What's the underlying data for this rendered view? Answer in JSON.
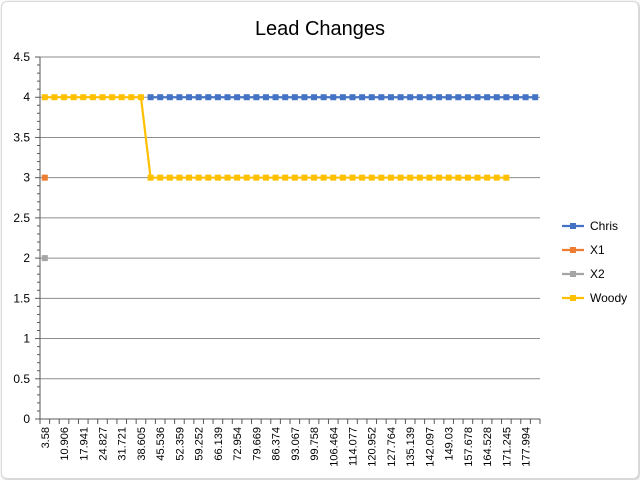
{
  "chart_data": {
    "type": "line",
    "title": "Lead Changes",
    "xlabel": "",
    "ylabel": "",
    "ylim": [
      0,
      4.5
    ],
    "yticks": [
      "0",
      "0.5",
      "1",
      "1.5",
      "2",
      "2.5",
      "3",
      "3.5",
      "4",
      "4.5"
    ],
    "x_tick_labels": [
      "3.58",
      "10.906",
      "17.941",
      "24.827",
      "31.721",
      "38.605",
      "45.536",
      "52.359",
      "59.252",
      "66.139",
      "72.954",
      "79.669",
      "86.374",
      "93.067",
      "99.758",
      "106.464",
      "114.077",
      "120.952",
      "127.764",
      "135.139",
      "142.097",
      "149.03",
      "157.678",
      "164.528",
      "171.245",
      "177.994"
    ],
    "legend_position": "right",
    "grid": true,
    "series": [
      {
        "name": "Chris",
        "color": "#4472c4",
        "marker": "square",
        "start_index": 11,
        "end_index": 51,
        "value": 4
      },
      {
        "name": "X1",
        "color": "#ed7d31",
        "marker": "square",
        "start_index": 0,
        "end_index": 0,
        "value": 3
      },
      {
        "name": "X2",
        "color": "#a5a5a5",
        "marker": "square",
        "start_index": 0,
        "end_index": 0,
        "value": 2
      },
      {
        "name": "Woody",
        "color": "#ffc000",
        "marker": "square",
        "segments": [
          {
            "start_index": 0,
            "end_index": 10,
            "value": 4
          },
          {
            "start_index": 11,
            "end_index": 48,
            "value": 3
          }
        ]
      }
    ],
    "category_count": 52
  }
}
